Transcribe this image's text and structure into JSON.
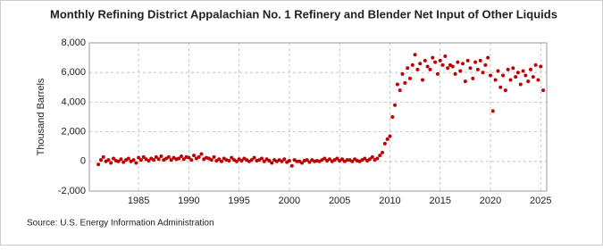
{
  "chart_data": {
    "type": "scatter",
    "title": "Monthly Refining District Appalachian No. 1 Refinery and Blender Net Input of Other Liquids",
    "y_label": "Thousand Barrels",
    "source": "Source: U.S. Energy Information Administration",
    "xlim": [
      1980.1,
      2025.6
    ],
    "ylim": [
      -2000,
      8000
    ],
    "xticks": [
      1985,
      1990,
      1995,
      2000,
      2005,
      2010,
      2015,
      2020,
      2025
    ],
    "yticks": [
      {
        "value": -2000,
        "label": "-2,000"
      },
      0,
      {
        "value": 2000,
        "label": "2,000"
      },
      {
        "value": 4000,
        "label": "4,000"
      },
      {
        "value": 6000,
        "label": "6,000"
      },
      {
        "value": 8000,
        "label": "8,000"
      }
    ],
    "grid": true,
    "color": "#c00000",
    "x": [
      1981,
      1981.25,
      1981.5,
      1981.75,
      1982,
      1982.25,
      1982.5,
      1982.75,
      1983,
      1983.25,
      1983.5,
      1983.75,
      1984,
      1984.25,
      1984.5,
      1984.75,
      1985,
      1985.25,
      1985.5,
      1985.75,
      1986,
      1986.25,
      1986.5,
      1986.75,
      1987,
      1987.25,
      1987.5,
      1987.75,
      1988,
      1988.25,
      1988.5,
      1988.75,
      1989,
      1989.25,
      1989.5,
      1989.75,
      1990,
      1990.25,
      1990.5,
      1990.75,
      1991,
      1991.25,
      1991.5,
      1991.75,
      1992,
      1992.25,
      1992.5,
      1992.75,
      1993,
      1993.25,
      1993.5,
      1993.75,
      1994,
      1994.25,
      1994.5,
      1994.75,
      1995,
      1995.25,
      1995.5,
      1995.75,
      1996,
      1996.25,
      1996.5,
      1996.75,
      1997,
      1997.25,
      1997.5,
      1997.75,
      1998,
      1998.25,
      1998.5,
      1998.75,
      1999,
      1999.25,
      1999.5,
      1999.75,
      2000,
      2000.25,
      2000.5,
      2000.75,
      2001,
      2001.25,
      2001.5,
      2001.75,
      2002,
      2002.25,
      2002.5,
      2002.75,
      2003,
      2003.25,
      2003.5,
      2003.75,
      2004,
      2004.25,
      2004.5,
      2004.75,
      2005,
      2005.25,
      2005.5,
      2005.75,
      2006,
      2006.25,
      2006.5,
      2006.75,
      2007,
      2007.25,
      2007.5,
      2007.75,
      2008,
      2008.25,
      2008.5,
      2008.75,
      2009,
      2009.25,
      2009.5,
      2009.75,
      2010,
      2010.25,
      2010.5,
      2010.75,
      2011,
      2011.25,
      2011.5,
      2011.75,
      2012,
      2012.25,
      2012.5,
      2012.75,
      2013,
      2013.25,
      2013.5,
      2013.75,
      2014,
      2014.25,
      2014.5,
      2014.75,
      2015,
      2015.25,
      2015.5,
      2015.75,
      2016,
      2016.25,
      2016.5,
      2016.75,
      2017,
      2017.25,
      2017.5,
      2017.75,
      2018,
      2018.25,
      2018.5,
      2018.75,
      2019,
      2019.25,
      2019.5,
      2019.75,
      2020,
      2020.25,
      2020.5,
      2020.75,
      2021,
      2021.25,
      2021.5,
      2021.75,
      2022,
      2022.25,
      2022.5,
      2022.75,
      2023,
      2023.25,
      2023.5,
      2023.75,
      2024,
      2024.25,
      2024.5,
      2024.75,
      2025,
      2025.25
    ],
    "values": [
      -200,
      100,
      300,
      0,
      100,
      -100,
      200,
      50,
      0,
      150,
      -50,
      100,
      200,
      0,
      100,
      -100,
      250,
      100,
      300,
      150,
      50,
      200,
      100,
      300,
      150,
      350,
      100,
      200,
      300,
      100,
      250,
      150,
      200,
      350,
      150,
      300,
      250,
      100,
      400,
      200,
      300,
      500,
      150,
      250,
      200,
      100,
      300,
      50,
      150,
      0,
      200,
      100,
      50,
      250,
      100,
      0,
      150,
      50,
      200,
      100,
      0,
      100,
      250,
      50,
      100,
      200,
      0,
      150,
      50,
      -100,
      100,
      0,
      100,
      0,
      150,
      -50,
      50,
      -300,
      100,
      0,
      0,
      -100,
      50,
      100,
      -50,
      100,
      0,
      50,
      0,
      100,
      200,
      50,
      150,
      0,
      100,
      200,
      50,
      150,
      0,
      100,
      100,
      0,
      150,
      50,
      0,
      100,
      200,
      50,
      150,
      300,
      100,
      200,
      400,
      600,
      1200,
      1500,
      1700,
      3000,
      3800,
      5200,
      4800,
      5900,
      5300,
      6300,
      5600,
      6500,
      7200,
      6200,
      6600,
      5500,
      6800,
      6400,
      6200,
      7000,
      6700,
      5900,
      6800,
      6500,
      7100,
      6300,
      6500,
      6400,
      5900,
      6700,
      6100,
      6600,
      5400,
      6800,
      6300,
      5600,
      6700,
      6200,
      6800,
      6000,
      6500,
      7000,
      5800,
      3400,
      5500,
      6100,
      5000,
      5800,
      4800,
      6200,
      5500,
      6300,
      5700,
      6000,
      5200,
      6100,
      5800,
      5400,
      6200,
      5700,
      6500,
      5500,
      6400,
      4800
    ]
  }
}
